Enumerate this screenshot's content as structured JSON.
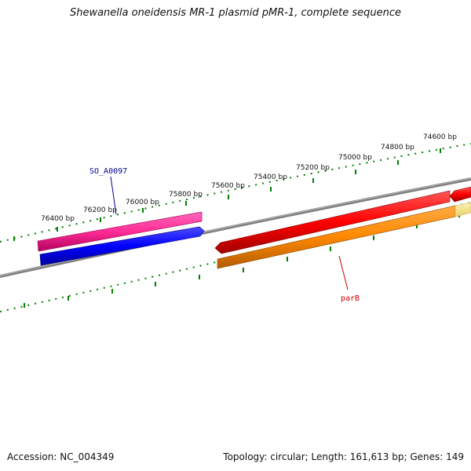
{
  "title": "Shewanella oneidensis MR-1 plasmid pMR-1, complete sequence",
  "footer": {
    "accession": "Accession: NC_004349",
    "summary": "Topology: circular; Length: 161,613 bp; Genes: 149"
  },
  "map": {
    "tick_labels": [
      "76400 bp",
      "76200 bp",
      "76000 bp",
      "75800 bp",
      "75600 bp",
      "75400 bp",
      "75200 bp",
      "75000 bp",
      "74800 bp",
      "74600 bp"
    ],
    "genes": [
      {
        "label": "SO_A0097",
        "color": "#00008b"
      },
      {
        "label": "parB",
        "color": "#cc0000"
      }
    ],
    "feature_colors": {
      "pink": "#ff3399",
      "blue": "#0000ff",
      "red": "#ff0000",
      "orange": "#ff8800",
      "yellow": "#f5e08a",
      "backbone": "#808080",
      "ticks": "#008000"
    }
  }
}
